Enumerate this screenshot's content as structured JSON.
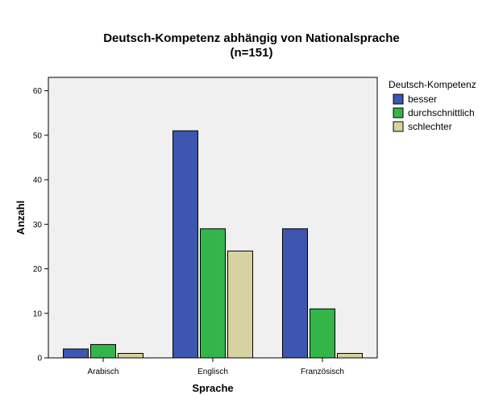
{
  "chart_data": {
    "type": "bar",
    "title": "Deutsch-Kompetenz abhängig von Nationalsprache",
    "subtitle": "(n=151)",
    "xlabel": "Sprache",
    "ylabel": "Anzahl",
    "categories": [
      "Arabisch",
      "Englisch",
      "Französisch"
    ],
    "ylim": [
      0,
      63
    ],
    "yticks": [
      0,
      10,
      20,
      30,
      40,
      50,
      60
    ],
    "grid": false,
    "legend": {
      "title": "Deutsch-Kompetenz",
      "placement": "right"
    },
    "series": [
      {
        "name": "besser",
        "color": "#3d56b0",
        "values": [
          2,
          51,
          29
        ]
      },
      {
        "name": "durchschnittlich",
        "color": "#33b54a",
        "values": [
          3,
          29,
          11
        ]
      },
      {
        "name": "schlechter",
        "color": "#d6d3a0",
        "values": [
          1,
          24,
          1
        ]
      }
    ],
    "plot_background": "#f0f0f0"
  }
}
